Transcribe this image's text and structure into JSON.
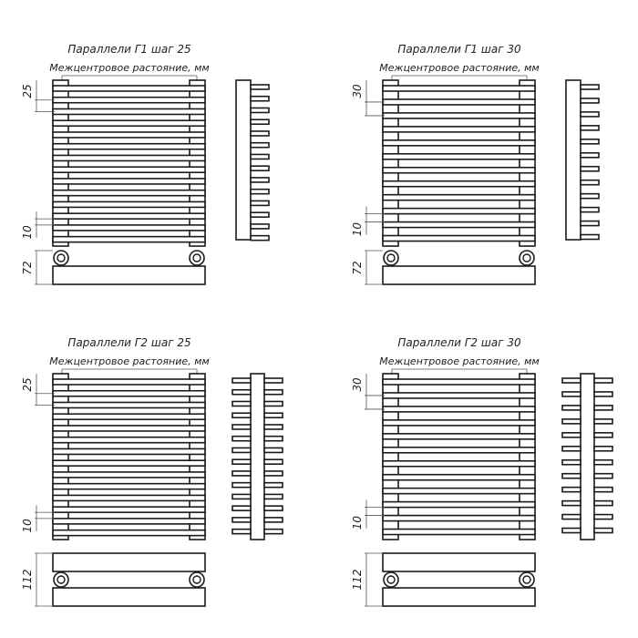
{
  "panels": [
    {
      "title": "Параллели Г1 шаг 25",
      "subtitle": "Межцентровое растояние, мм",
      "pitch": "25",
      "tube_gap": "10",
      "depth": "72",
      "model": "G1",
      "tube_count": 14
    },
    {
      "title": "Параллели Г1 шаг 30",
      "subtitle": "Межцентровое растояние, мм",
      "pitch": "30",
      "tube_gap": "10",
      "depth": "72",
      "model": "G1",
      "tube_count": 12
    },
    {
      "title": "Параллели Г2 шаг 25",
      "subtitle": "Межцентровое растояние, мм",
      "pitch": "25",
      "tube_gap": "10",
      "depth": "112",
      "model": "G2",
      "tube_count": 14
    },
    {
      "title": "Параллели Г2 шаг 30",
      "subtitle": "Межцентровое растояние, мм",
      "pitch": "30",
      "tube_gap": "10",
      "depth": "112",
      "model": "G2",
      "tube_count": 12
    }
  ],
  "colors": {
    "line": "#1a1a1a",
    "dim": "#555555"
  }
}
